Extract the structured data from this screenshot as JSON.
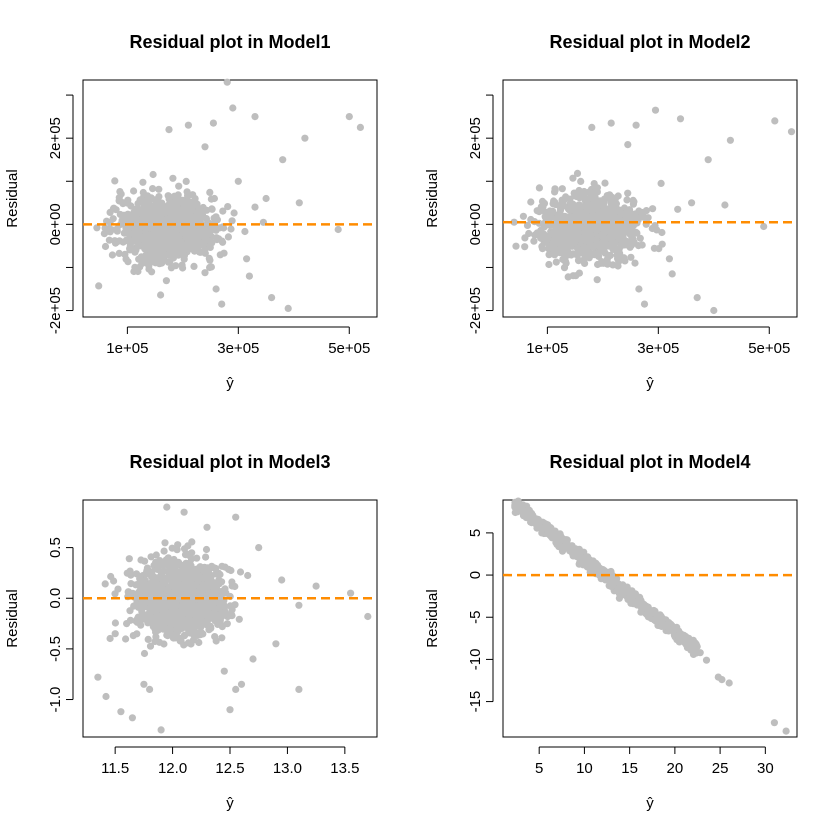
{
  "colors": {
    "points": "#BEBEBE",
    "refline": "#FF8C00",
    "axes": "#000000"
  },
  "chart_data": [
    {
      "type": "scatter",
      "title": "Residual plot in Model1",
      "xlabel": "ŷ",
      "ylabel": "Residual",
      "xlim": [
        20000,
        550000
      ],
      "ylim": [
        -215000,
        335000
      ],
      "xticks": [
        100000,
        300000,
        500000
      ],
      "xtick_labels": [
        "1e+05",
        "3e+05",
        "5e+05"
      ],
      "yticks": [
        -200000,
        0,
        200000
      ],
      "ytick_labels": [
        "-2e+05",
        "0e+00",
        "2e+05"
      ],
      "yminor_ticks": [
        -100000,
        100000,
        300000
      ],
      "hline": 0,
      "cloud": {
        "center": [
          170000,
          -10000
        ],
        "spread": [
          45000,
          38000
        ],
        "count": 900
      },
      "points": [
        [
          480,
          -12000
        ],
        [
          500,
          250000
        ],
        [
          520,
          225000
        ],
        [
          390,
          -195000
        ],
        [
          420,
          200000
        ],
        [
          380,
          150000
        ],
        [
          350,
          60000
        ],
        [
          330,
          250000
        ],
        [
          280,
          330000
        ],
        [
          290,
          270000
        ],
        [
          255,
          235000
        ],
        [
          175,
          220000
        ],
        [
          410,
          50000
        ],
        [
          300,
          100000
        ],
        [
          330,
          40000
        ],
        [
          260,
          -150000
        ],
        [
          270,
          -185000
        ],
        [
          360,
          -170000
        ],
        [
          320,
          -120000
        ],
        [
          315,
          -80000
        ],
        [
          250,
          -40000
        ],
        [
          45,
          -8000
        ],
        [
          210,
          230000
        ],
        [
          240,
          180000
        ]
      ]
    },
    {
      "type": "scatter",
      "title": "Residual plot in Model2",
      "xlabel": "ŷ",
      "ylabel": "Residual",
      "xlim": [
        20000,
        550000
      ],
      "ylim": [
        -215000,
        335000
      ],
      "xticks": [
        100000,
        300000,
        500000
      ],
      "xtick_labels": [
        "1e+05",
        "3e+05",
        "5e+05"
      ],
      "yticks": [
        -200000,
        0,
        200000
      ],
      "ytick_labels": [
        "-2e+05",
        "0e+00",
        "2e+05"
      ],
      "yminor_ticks": [
        -100000,
        100000,
        300000
      ],
      "hline": 5000,
      "cloud": {
        "center": [
          175000,
          -8000
        ],
        "spread": [
          45000,
          38000
        ],
        "count": 900
      },
      "points": [
        [
          490,
          -5000
        ],
        [
          510,
          240000
        ],
        [
          540,
          215000
        ],
        [
          400,
          -200000
        ],
        [
          430,
          195000
        ],
        [
          390,
          150000
        ],
        [
          360,
          50000
        ],
        [
          340,
          245000
        ],
        [
          285,
          335000
        ],
        [
          295,
          265000
        ],
        [
          260,
          230000
        ],
        [
          180,
          225000
        ],
        [
          420,
          45000
        ],
        [
          305,
          95000
        ],
        [
          335,
          35000
        ],
        [
          265,
          -150000
        ],
        [
          275,
          -185000
        ],
        [
          370,
          -170000
        ],
        [
          325,
          -115000
        ],
        [
          320,
          -80000
        ],
        [
          255,
          -40000
        ],
        [
          40,
          5000
        ],
        [
          215,
          235000
        ],
        [
          245,
          185000
        ]
      ]
    },
    {
      "type": "scatter",
      "title": "Residual plot in Model3",
      "xlabel": "ŷ",
      "ylabel": "Residual",
      "xlim": [
        11.22,
        13.78
      ],
      "ylim": [
        -1.37,
        0.97
      ],
      "xticks": [
        11.5,
        12.0,
        12.5,
        13.0,
        13.5
      ],
      "xtick_labels": [
        "11.5",
        "12.0",
        "12.5",
        "13.0",
        "13.5"
      ],
      "yticks": [
        -1.0,
        -0.5,
        0.0,
        0.5
      ],
      "ytick_labels": [
        "-1.0",
        "-0.5",
        "0.0",
        "0.5"
      ],
      "hline": 0,
      "cloud": {
        "center": [
          12.05,
          -0.02
        ],
        "spread": [
          0.2,
          0.2
        ],
        "count": 900
      },
      "points": [
        [
          11.35,
          -0.78
        ],
        [
          11.42,
          -0.97
        ],
        [
          11.55,
          -1.12
        ],
        [
          11.65,
          -1.18
        ],
        [
          11.9,
          -1.3
        ],
        [
          11.75,
          -0.85
        ],
        [
          11.8,
          -0.9
        ],
        [
          13.7,
          -0.18
        ],
        [
          13.55,
          0.05
        ],
        [
          13.25,
          0.12
        ],
        [
          13.1,
          -0.07
        ],
        [
          12.95,
          0.18
        ],
        [
          12.9,
          -0.45
        ],
        [
          12.7,
          -0.6
        ],
        [
          12.6,
          -0.85
        ],
        [
          12.55,
          -0.9
        ],
        [
          12.45,
          -0.72
        ],
        [
          12.5,
          -1.1
        ],
        [
          13.1,
          -0.9
        ],
        [
          11.95,
          0.9
        ],
        [
          12.1,
          0.85
        ],
        [
          12.3,
          0.7
        ],
        [
          12.55,
          0.8
        ],
        [
          12.75,
          0.5
        ],
        [
          11.6,
          -0.25
        ],
        [
          11.5,
          -0.35
        ]
      ]
    },
    {
      "type": "scatter",
      "title": "Residual plot in Model4",
      "xlabel": "ŷ",
      "ylabel": "Residual",
      "xlim": [
        1.0,
        33.5
      ],
      "ylim": [
        -19.2,
        8.9
      ],
      "xticks": [
        5,
        10,
        15,
        20,
        25,
        30
      ],
      "xtick_labels": [
        "5",
        "10",
        "15",
        "20",
        "25",
        "30"
      ],
      "yticks": [
        -15,
        -10,
        -5,
        0,
        5
      ],
      "ytick_labels": [
        "-15",
        "-10",
        "-5",
        "0",
        "5"
      ],
      "hline": 0,
      "trend": {
        "x_range": [
          2.3,
          22.5
        ],
        "intercept": 10.4,
        "slope": -0.86,
        "jitter": 0.35,
        "count": 700
      },
      "points": [
        [
          2.3,
          8.3
        ],
        [
          3.0,
          7.9
        ],
        [
          22.8,
          -9.2
        ],
        [
          23.5,
          -10.1
        ],
        [
          24.8,
          -12.1
        ],
        [
          25.2,
          -12.4
        ],
        [
          26.0,
          -12.8
        ],
        [
          31.0,
          -17.5
        ],
        [
          32.3,
          -18.5
        ]
      ]
    }
  ]
}
